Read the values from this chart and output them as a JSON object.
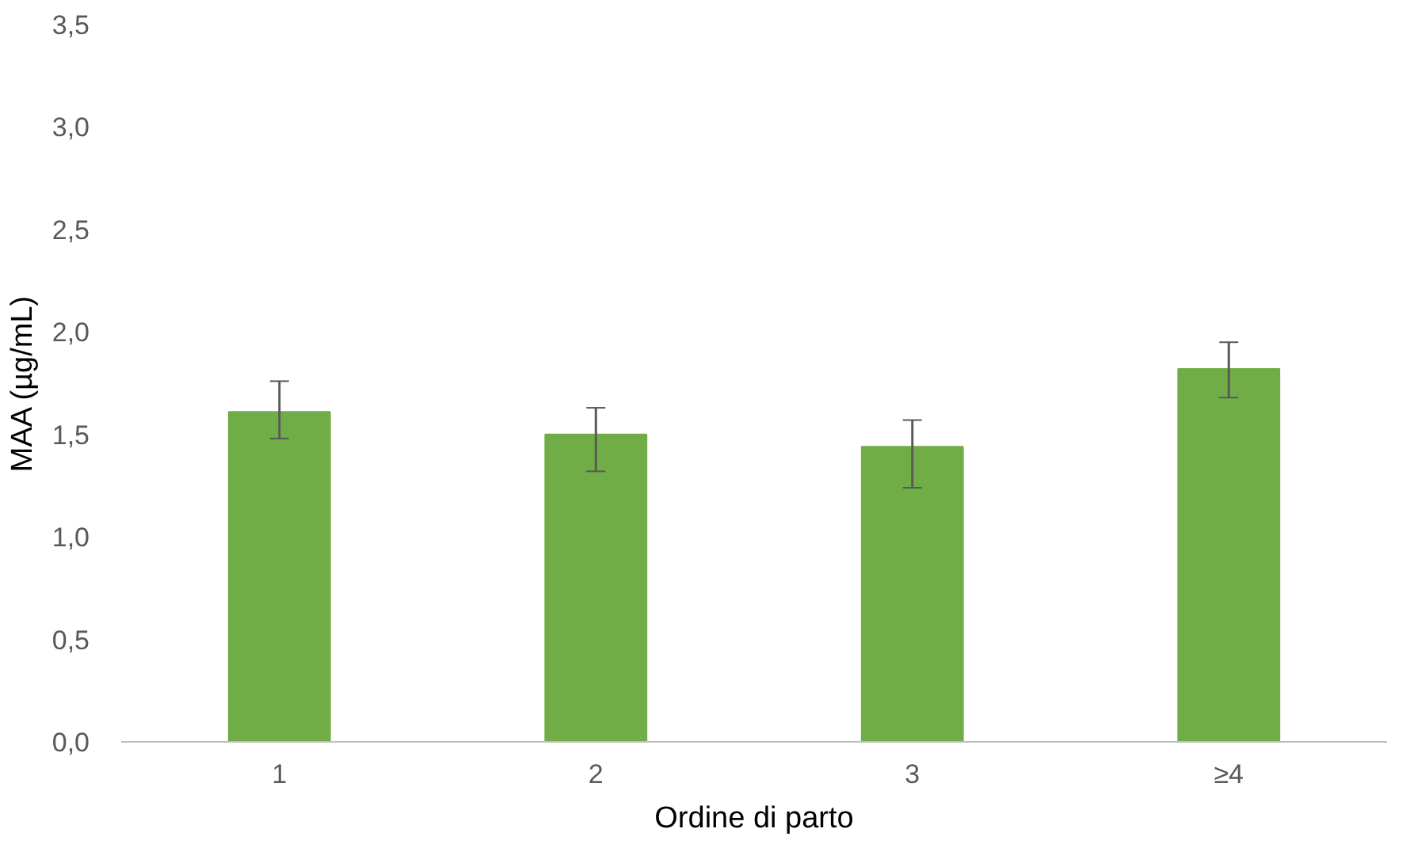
{
  "chart_data": {
    "type": "bar",
    "xlabel": "Ordine di parto",
    "ylabel": "MAA (µg/mL)",
    "categories": [
      "1",
      "2",
      "3",
      "≥4"
    ],
    "values": [
      1.61,
      1.5,
      1.44,
      1.82
    ],
    "errors": [
      [
        1.48,
        1.76
      ],
      [
        1.32,
        1.63
      ],
      [
        1.24,
        1.57
      ],
      [
        1.68,
        1.95
      ]
    ],
    "color": "#70ad47",
    "ylim": [
      0,
      3.5
    ],
    "yticks": [
      {
        "value": 0,
        "label": "0,0"
      },
      {
        "value": 0.5,
        "label": "0,5"
      },
      {
        "value": 1,
        "label": "1,0"
      },
      {
        "value": 1.5,
        "label": "1,5"
      },
      {
        "value": 2,
        "label": "2,0"
      },
      {
        "value": 2.5,
        "label": "2,5"
      },
      {
        "value": 3,
        "label": "3,0"
      },
      {
        "value": 3.5,
        "label": "3,5"
      }
    ],
    "grid": false
  }
}
